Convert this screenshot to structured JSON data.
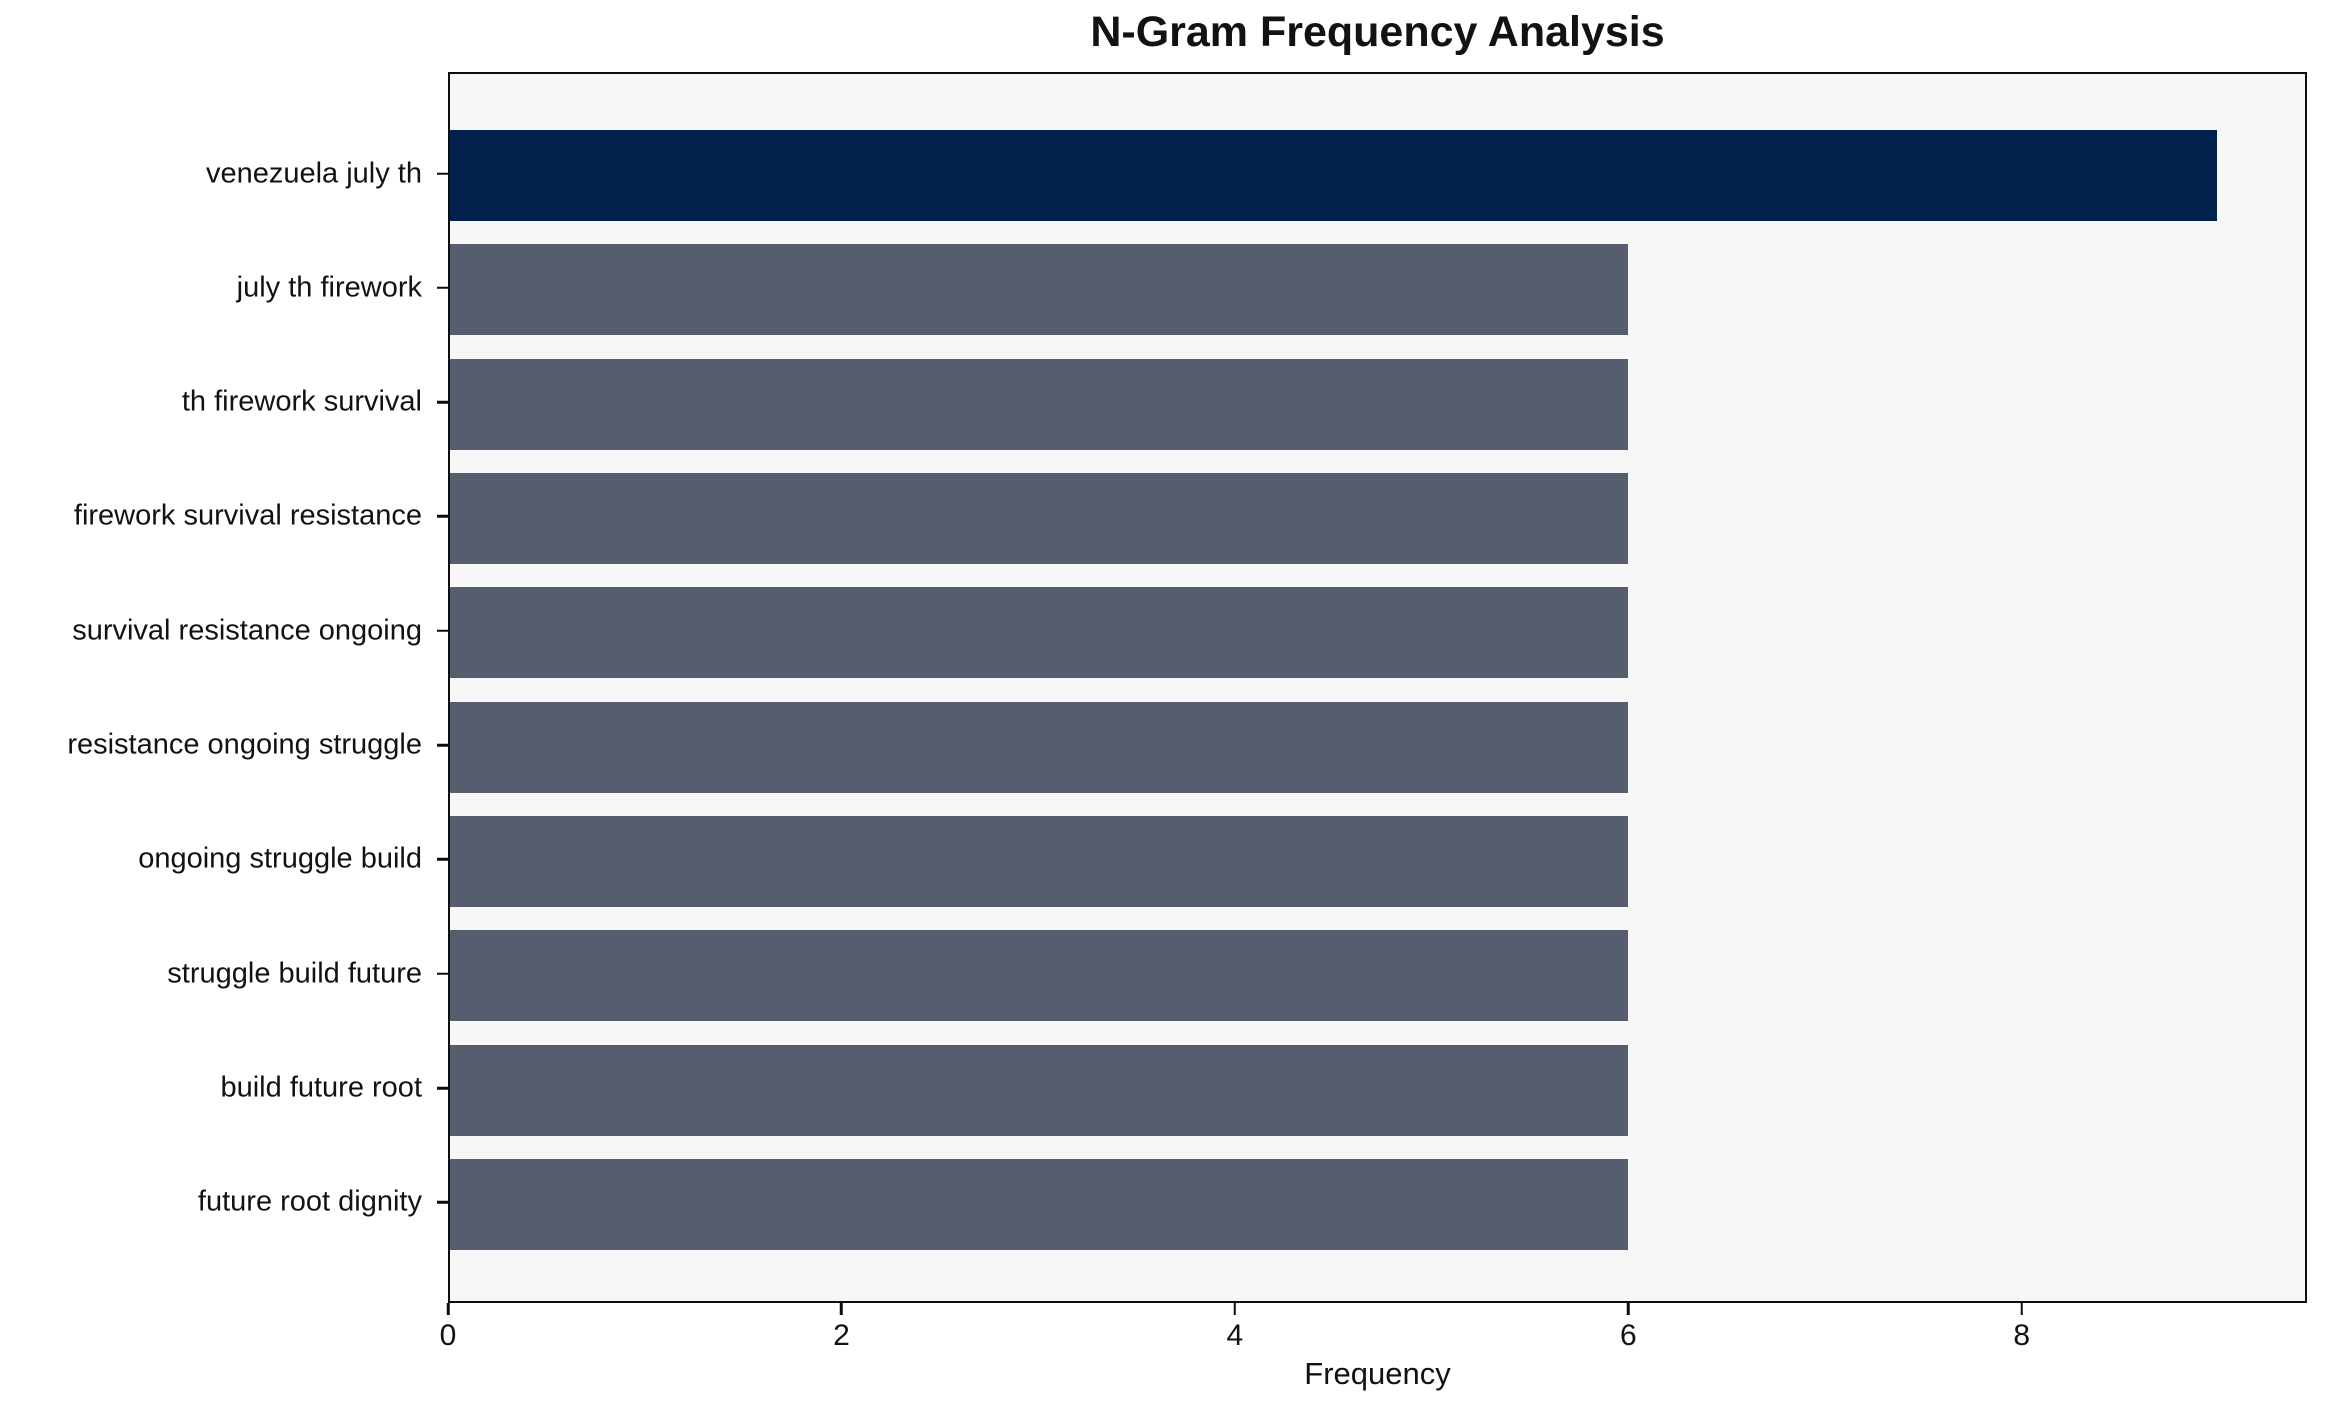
{
  "chart_data": {
    "type": "bar",
    "orientation": "horizontal",
    "title": "N-Gram Frequency Analysis",
    "xlabel": "Frequency",
    "ylabel": "",
    "categories": [
      "venezuela july th",
      "july th firework",
      "th firework survival",
      "firework survival resistance",
      "survival resistance ongoing",
      "resistance ongoing struggle",
      "ongoing struggle build",
      "struggle build future",
      "build future root",
      "future root dignity"
    ],
    "values": [
      9,
      6,
      6,
      6,
      6,
      6,
      6,
      6,
      6,
      6
    ],
    "xlim": [
      0,
      9.45
    ],
    "xticks": [
      0,
      2,
      4,
      6,
      8
    ],
    "grid": false,
    "legend_position": "none",
    "highlight_index": 0,
    "colors": {
      "highlight_bar": "#01224d",
      "default_bar": "#565d6e",
      "plot_background": "#f7f7f8",
      "figure_background": "#ffffff",
      "axis": "#0d0d0d",
      "text": "#121212"
    }
  }
}
